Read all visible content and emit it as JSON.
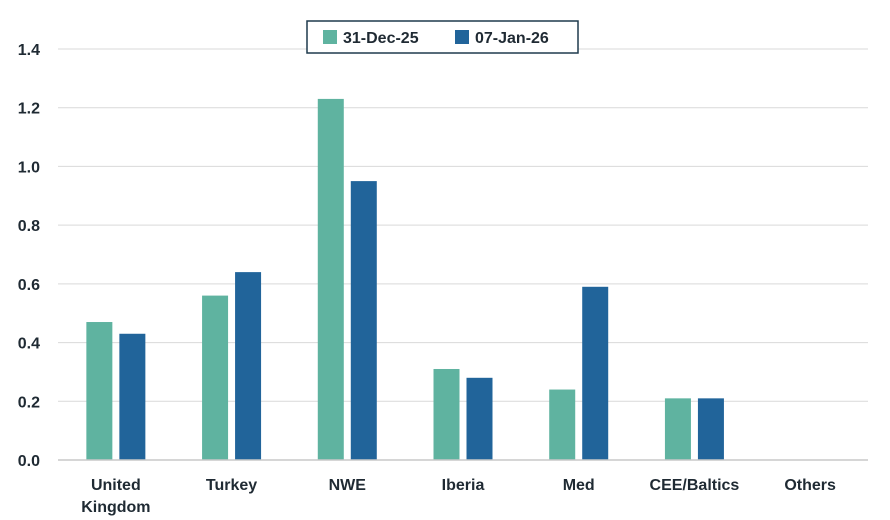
{
  "chart_data": {
    "type": "bar",
    "title": "",
    "xlabel": "",
    "ylabel": "",
    "categories": [
      "United Kingdom",
      "Turkey",
      "NWE",
      "Iberia",
      "Med",
      "CEE/Baltics",
      "Others"
    ],
    "category_lines": [
      [
        "United",
        "Kingdom"
      ],
      [
        "Turkey"
      ],
      [
        "NWE"
      ],
      [
        "Iberia"
      ],
      [
        "Med"
      ],
      [
        "CEE/Baltics"
      ],
      [
        "Others"
      ]
    ],
    "series": [
      {
        "name": "31-Dec-25",
        "color": "#5fb3a0",
        "values": [
          0.47,
          0.56,
          1.23,
          0.31,
          0.24,
          0.21,
          null
        ]
      },
      {
        "name": "07-Jan-26",
        "color": "#21649a",
        "values": [
          0.43,
          0.64,
          0.95,
          0.28,
          0.59,
          0.21,
          null
        ]
      }
    ],
    "ylim": [
      0,
      1.4
    ],
    "yticks": [
      0.0,
      0.2,
      0.4,
      0.6,
      0.8,
      1.0,
      1.2,
      1.4
    ],
    "ytick_labels": [
      "0.0",
      "0.2",
      "0.4",
      "0.6",
      "0.8",
      "1.0",
      "1.2",
      "1.4"
    ],
    "grid": true,
    "legend_position": "top-center"
  }
}
